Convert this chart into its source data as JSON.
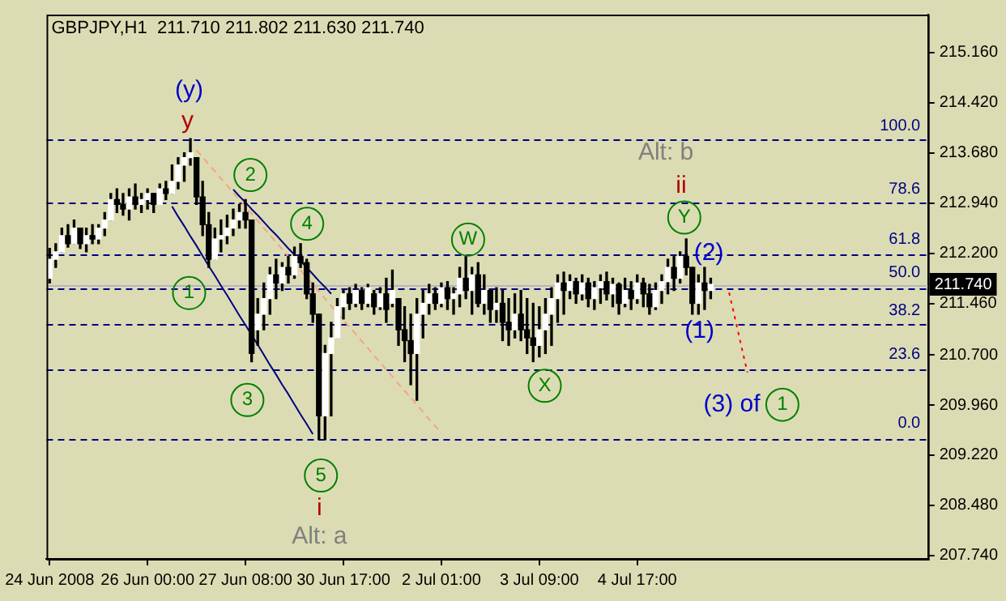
{
  "chart_data": {
    "type": "candlestick",
    "title": "GBPJPY,H1  211.710 211.802 211.630 211.740",
    "color": "#000000",
    "colors": [
      "#ffffff",
      "#ffffff",
      "#ffffff",
      "#000000",
      "#ffffff",
      "#000000",
      "#ffffff",
      "#000000",
      "#ffffff",
      "#ffffff",
      "#ffffff",
      "#000000",
      "#000000",
      "#ffffff",
      "#000000",
      "#ffffff",
      "#ffffff",
      "#000000",
      "#ffffff",
      "#000000",
      "#ffffff",
      "#ffffff",
      "#ffffff",
      "#ffffff",
      "#000000",
      "#000000",
      "#000000",
      "#ffffff",
      "#ffffff",
      "#ffffff",
      "#ffffff",
      "#ffffff",
      "#000000",
      "#000000",
      "#ffffff",
      "#ffffff",
      "#ffffff",
      "#000000",
      "#ffffff",
      "#000000",
      "#ffffff",
      "#000000",
      "#000000",
      "#000000",
      "#000000",
      "#ffffff",
      "#ffffff",
      "#ffffff",
      "#ffffff",
      "#000000",
      "#ffffff",
      "#000000",
      "#ffffff",
      "#000000",
      "#ffffff",
      "#000000",
      "#ffffff",
      "#000000",
      "#000000",
      "#000000",
      "#ffffff",
      "#ffffff",
      "#ffffff",
      "#000000",
      "#ffffff",
      "#000000",
      "#ffffff",
      "#ffffff",
      "#000000",
      "#ffffff",
      "#000000",
      "#ffffff",
      "#000000",
      "#ffffff",
      "#000000",
      "#000000",
      "#ffffff",
      "#000000",
      "#000000",
      "#000000",
      "#ffffff",
      "#ffffff",
      "#ffffff",
      "#ffffff",
      "#000000",
      "#ffffff",
      "#000000",
      "#ffffff",
      "#000000",
      "#ffffff",
      "#ffffff",
      "#000000",
      "#ffffff",
      "#000000",
      "#ffffff",
      "#000000",
      "#ffffff",
      "#000000",
      "#000000",
      "#ffffff",
      "#ffffff",
      "#ffffff",
      "#000000",
      "#ffffff",
      "#000000",
      "#000000",
      "#ffffff",
      "#000000",
      "#ffffff",
      null,
      null,
      null,
      null,
      null,
      null,
      null,
      null,
      null,
      null,
      null,
      null,
      null,
      null,
      null,
      null,
      null,
      null,
      null,
      null,
      null,
      null,
      null,
      null,
      null,
      null,
      null,
      null,
      null,
      null,
      null,
      null,
      null,
      null,
      null
    ],
    "grid": false,
    "legend": false,
    "categories": [
      "24 Jun 2008",
      null,
      null,
      null,
      null,
      null,
      null,
      null,
      null,
      null,
      null,
      null,
      null,
      null,
      null,
      null,
      "26 Jun 00:00",
      null,
      null,
      null,
      null,
      null,
      null,
      null,
      null,
      null,
      null,
      null,
      null,
      null,
      null,
      null,
      "27 Jun 08:00",
      null,
      null,
      null,
      null,
      null,
      null,
      null,
      null,
      null,
      null,
      null,
      null,
      null,
      null,
      null,
      "30 Jun 17:00",
      null,
      null,
      null,
      null,
      null,
      null,
      null,
      null,
      null,
      null,
      null,
      null,
      null,
      null,
      null,
      "2 Jul 01:00",
      null,
      null,
      null,
      null,
      null,
      null,
      null,
      null,
      null,
      null,
      null,
      null,
      null,
      null,
      null,
      "3 Jul 09:00",
      null,
      null,
      null,
      null,
      null,
      null,
      null,
      null,
      null,
      null,
      null,
      null,
      null,
      null,
      null,
      "4 Jul 17:00",
      null,
      null,
      null,
      null,
      null,
      null,
      null,
      null,
      null,
      null,
      null,
      null,
      null,
      null,
      null,
      null,
      null,
      null,
      null,
      null,
      null,
      null,
      null,
      null,
      null,
      null,
      null,
      null,
      null,
      null,
      null,
      null,
      null,
      null,
      null,
      null,
      null,
      null,
      null,
      null,
      null,
      null,
      null,
      null,
      null,
      null,
      null
    ],
    "ohlc": [
      [
        211.83,
        212.27,
        211.76,
        212.11
      ],
      [
        212.11,
        212.34,
        211.99,
        212.22
      ],
      [
        212.22,
        212.57,
        212.22,
        212.46
      ],
      [
        212.46,
        212.62,
        212.29,
        212.34
      ],
      [
        212.34,
        212.69,
        212.34,
        212.57
      ],
      [
        212.57,
        212.57,
        212.27,
        212.34
      ],
      [
        212.34,
        212.57,
        212.22,
        212.46
      ],
      [
        212.46,
        212.62,
        212.34,
        212.41
      ],
      [
        212.41,
        212.62,
        212.34,
        212.57
      ],
      [
        212.57,
        212.8,
        212.46,
        212.69
      ],
      [
        212.69,
        213.08,
        212.69,
        212.99
      ],
      [
        212.99,
        213.15,
        212.8,
        212.92
      ],
      [
        212.92,
        213.08,
        212.76,
        212.85
      ],
      [
        212.85,
        213.15,
        212.69,
        213.03
      ],
      [
        213.03,
        213.22,
        212.85,
        212.92
      ],
      [
        212.92,
        213.08,
        212.8,
        212.99
      ],
      [
        212.99,
        213.15,
        212.85,
        213.08
      ],
      [
        213.08,
        213.08,
        212.8,
        212.92
      ],
      [
        212.92,
        213.22,
        212.92,
        213.15
      ],
      [
        213.15,
        213.26,
        212.99,
        213.08
      ],
      [
        213.08,
        213.5,
        213.08,
        213.26
      ],
      [
        213.26,
        213.61,
        213.15,
        213.5
      ],
      [
        213.5,
        213.68,
        213.26,
        213.61
      ],
      [
        213.61,
        213.89,
        213.5,
        213.68
      ],
      [
        213.61,
        213.61,
        212.92,
        213.03
      ],
      [
        213.03,
        213.26,
        212.46,
        212.62
      ],
      [
        212.62,
        212.8,
        211.99,
        212.11
      ],
      [
        212.11,
        212.57,
        212.11,
        212.41
      ],
      [
        212.41,
        212.69,
        212.22,
        212.46
      ],
      [
        212.46,
        212.76,
        212.34,
        212.57
      ],
      [
        212.57,
        212.85,
        212.46,
        212.69
      ],
      [
        212.69,
        212.92,
        212.57,
        212.8
      ],
      [
        212.8,
        212.99,
        212.57,
        212.69
      ],
      [
        212.69,
        212.69,
        210.6,
        210.72
      ],
      [
        211.07,
        211.53,
        210.84,
        211.3
      ],
      [
        211.3,
        211.76,
        211.07,
        211.53
      ],
      [
        211.53,
        211.99,
        211.3,
        211.88
      ],
      [
        211.88,
        212.11,
        211.53,
        211.76
      ],
      [
        211.76,
        212.06,
        211.65,
        211.99
      ],
      [
        211.99,
        212.15,
        211.76,
        211.88
      ],
      [
        211.88,
        212.29,
        211.83,
        212.15
      ],
      [
        212.15,
        212.34,
        211.99,
        212.06
      ],
      [
        212.06,
        212.11,
        211.53,
        211.6
      ],
      [
        211.6,
        211.76,
        211.18,
        211.3
      ],
      [
        211.3,
        211.3,
        209.45,
        209.8
      ],
      [
        209.8,
        210.84,
        209.45,
        210.72
      ],
      [
        210.72,
        211.18,
        209.8,
        210.95
      ],
      [
        210.95,
        211.53,
        210.95,
        211.41
      ],
      [
        211.41,
        211.65,
        211.23,
        211.6
      ],
      [
        211.6,
        211.69,
        211.37,
        211.46
      ],
      [
        211.46,
        211.74,
        211.41,
        211.65
      ],
      [
        211.65,
        211.69,
        211.37,
        211.46
      ],
      [
        211.46,
        211.74,
        211.41,
        211.69
      ],
      [
        211.6,
        211.65,
        211.3,
        211.41
      ],
      [
        211.41,
        211.69,
        211.37,
        211.6
      ],
      [
        211.6,
        211.83,
        211.18,
        211.37
      ],
      [
        211.46,
        211.95,
        211.41,
        211.65
      ],
      [
        211.53,
        211.53,
        210.84,
        211.07
      ],
      [
        211.07,
        211.41,
        210.6,
        210.91
      ],
      [
        210.91,
        211.3,
        210.26,
        210.72
      ],
      [
        210.72,
        211.53,
        210.03,
        211.3
      ],
      [
        211.3,
        211.65,
        210.95,
        211.46
      ],
      [
        211.46,
        211.74,
        211.3,
        211.6
      ],
      [
        211.6,
        211.69,
        211.37,
        211.46
      ],
      [
        211.46,
        211.76,
        211.41,
        211.69
      ],
      [
        211.69,
        211.78,
        211.37,
        211.53
      ],
      [
        211.53,
        211.69,
        211.3,
        211.6
      ],
      [
        211.6,
        211.99,
        211.41,
        211.83
      ],
      [
        211.83,
        212.15,
        211.53,
        211.65
      ],
      [
        211.65,
        211.99,
        211.3,
        211.88
      ],
      [
        211.88,
        212.06,
        211.41,
        211.46
      ],
      [
        211.46,
        211.88,
        211.3,
        211.65
      ],
      [
        211.65,
        211.65,
        211.18,
        211.37
      ],
      [
        211.37,
        211.69,
        211.18,
        211.46
      ],
      [
        211.46,
        211.65,
        210.91,
        211.18
      ],
      [
        211.18,
        211.53,
        210.84,
        211.07
      ],
      [
        211.07,
        211.6,
        210.95,
        211.3
      ],
      [
        211.3,
        211.65,
        210.91,
        211.07
      ],
      [
        211.07,
        211.53,
        210.72,
        210.95
      ],
      [
        210.95,
        211.46,
        210.6,
        210.84
      ],
      [
        210.84,
        211.41,
        210.67,
        211.07
      ],
      [
        211.07,
        211.53,
        210.72,
        211.3
      ],
      [
        211.3,
        211.69,
        210.84,
        211.53
      ],
      [
        211.53,
        211.88,
        211.18,
        211.76
      ],
      [
        211.76,
        211.92,
        211.3,
        211.65
      ],
      [
        211.65,
        211.88,
        211.53,
        211.78
      ],
      [
        211.78,
        211.83,
        211.46,
        211.6
      ],
      [
        211.6,
        211.88,
        211.51,
        211.76
      ],
      [
        211.76,
        211.83,
        211.41,
        211.53
      ],
      [
        211.53,
        211.78,
        211.37,
        211.69
      ],
      [
        211.69,
        211.88,
        211.46,
        211.78
      ],
      [
        211.78,
        211.92,
        211.51,
        211.6
      ],
      [
        211.6,
        211.83,
        211.41,
        211.74
      ],
      [
        211.74,
        211.76,
        211.3,
        211.46
      ],
      [
        211.46,
        211.83,
        211.41,
        211.65
      ],
      [
        211.65,
        211.78,
        211.37,
        211.53
      ],
      [
        211.53,
        211.88,
        211.46,
        211.76
      ],
      [
        211.76,
        211.83,
        211.41,
        211.6
      ],
      [
        211.6,
        211.74,
        211.3,
        211.41
      ],
      [
        211.41,
        211.76,
        211.37,
        211.65
      ],
      [
        211.65,
        211.88,
        211.46,
        211.78
      ],
      [
        211.78,
        212.11,
        211.6,
        211.99
      ],
      [
        211.99,
        212.15,
        211.65,
        211.83
      ],
      [
        211.83,
        212.22,
        211.76,
        212.15
      ],
      [
        212.15,
        212.41,
        211.88,
        211.99
      ],
      [
        211.99,
        211.99,
        211.3,
        211.46
      ],
      [
        211.46,
        211.88,
        211.3,
        211.76
      ],
      [
        211.76,
        211.99,
        211.37,
        211.65
      ],
      [
        211.65,
        211.83,
        211.53,
        211.74
      ],
      null,
      null,
      null,
      null,
      null,
      null,
      null,
      null,
      null,
      null,
      null,
      null,
      null,
      null,
      null,
      null,
      null,
      null,
      null,
      null,
      null,
      null,
      null,
      null,
      null,
      null,
      null,
      null,
      null,
      null,
      null,
      null,
      null,
      null,
      null
    ],
    "ylim": [
      207.69,
      215.72
    ],
    "yticks": [
      {
        "value": 215.16,
        "label": "215.160"
      },
      {
        "value": 214.42,
        "label": "214.420"
      },
      {
        "value": 213.68,
        "label": "213.680"
      },
      {
        "value": 212.94,
        "label": "212.940"
      },
      {
        "value": 212.2,
        "label": "212.200"
      },
      {
        "value": 211.46,
        "label": "211.460"
      },
      {
        "value": 210.7,
        "label": "210.700"
      },
      {
        "value": 209.96,
        "label": "209.960"
      },
      {
        "value": 209.22,
        "label": "209.220"
      },
      {
        "value": 208.48,
        "label": "208.480"
      },
      {
        "value": 207.74,
        "label": "207.740"
      }
    ],
    "series": [
      {
        "type": "line",
        "color": "#000080",
        "line_style": "solid",
        "values": [
          null,
          null,
          null,
          null,
          null,
          null,
          null,
          null,
          null,
          null,
          null,
          null,
          null,
          null,
          null,
          null,
          null,
          null,
          null,
          null,
          212.89,
          212.74,
          212.6,
          212.45,
          212.31,
          212.16,
          212.01,
          211.87,
          211.72,
          211.58,
          211.43,
          211.28,
          211.14,
          210.99,
          210.85,
          210.7,
          210.55,
          210.41,
          210.26,
          210.12,
          209.97,
          209.82,
          209.68,
          209.53,
          null,
          null,
          null,
          null,
          null,
          null,
          null,
          null,
          null,
          null,
          null,
          null,
          null,
          null,
          null,
          null,
          null,
          null,
          null,
          null,
          null,
          null,
          null,
          null,
          null,
          null,
          null,
          null,
          null,
          null,
          null,
          null,
          null,
          null,
          null,
          null,
          null,
          null,
          null,
          null,
          null,
          null,
          null,
          null,
          null,
          null,
          null,
          null,
          null,
          null,
          null,
          null,
          null,
          null,
          null,
          null,
          null,
          null,
          null,
          null,
          null,
          null,
          null,
          null,
          null,
          null,
          null,
          null,
          null,
          null,
          null,
          null,
          null,
          null,
          null,
          null,
          null,
          null,
          null,
          null,
          null,
          null,
          null,
          null,
          null,
          null,
          null,
          null,
          null,
          null,
          null,
          null,
          null,
          null,
          null,
          null,
          null,
          null,
          null,
          null
        ]
      },
      {
        "type": "line",
        "color": "#000080",
        "line_style": "solid",
        "values": [
          null,
          null,
          null,
          null,
          null,
          null,
          null,
          null,
          null,
          null,
          null,
          null,
          null,
          null,
          null,
          null,
          null,
          null,
          null,
          null,
          null,
          null,
          null,
          null,
          null,
          null,
          null,
          null,
          null,
          null,
          213.14,
          213.04,
          212.95,
          212.85,
          212.76,
          212.66,
          212.56,
          212.47,
          212.37,
          212.27,
          212.18,
          212.08,
          211.99,
          211.89,
          211.79,
          211.7,
          211.6,
          null,
          null,
          null,
          null,
          null,
          null,
          null,
          null,
          null,
          null,
          null,
          null,
          null,
          null,
          null,
          null,
          null,
          null,
          null,
          null,
          null,
          null,
          null,
          null,
          null,
          null,
          null,
          null,
          null,
          null,
          null,
          null,
          null,
          null,
          null,
          null,
          null,
          null,
          null,
          null,
          null,
          null,
          null,
          null,
          null,
          null,
          null,
          null,
          null,
          null,
          null,
          null,
          null,
          null,
          null,
          null,
          null,
          null,
          null,
          null,
          null,
          null,
          null,
          null,
          null,
          null,
          null,
          null,
          null,
          null,
          null,
          null,
          null,
          null,
          null,
          null,
          null,
          null,
          null,
          null,
          null,
          null,
          null,
          null,
          null,
          null,
          null,
          null,
          null,
          null,
          null,
          null,
          null,
          null,
          null,
          null,
          null
        ]
      },
      {
        "type": "line",
        "color": "#f4a582",
        "line_style": "dashed",
        "values": [
          null,
          null,
          null,
          null,
          null,
          null,
          null,
          null,
          null,
          null,
          null,
          null,
          null,
          null,
          null,
          null,
          null,
          null,
          null,
          null,
          null,
          null,
          null,
          null,
          213.72,
          213.62,
          213.51,
          213.41,
          213.3,
          213.2,
          213.09,
          212.99,
          212.89,
          212.78,
          212.68,
          212.57,
          212.47,
          212.36,
          212.26,
          212.15,
          212.05,
          211.95,
          211.84,
          211.74,
          211.63,
          211.53,
          211.42,
          211.32,
          211.21,
          211.11,
          211.01,
          210.9,
          210.8,
          210.69,
          210.59,
          210.48,
          210.38,
          210.27,
          210.17,
          210.07,
          209.96,
          209.86,
          209.75,
          209.65,
          209.54,
          null,
          null,
          null,
          null,
          null,
          null,
          null,
          null,
          null,
          null,
          null,
          null,
          null,
          null,
          null,
          null,
          null,
          null,
          null,
          null,
          null,
          null,
          null,
          null,
          null,
          null,
          null,
          null,
          null,
          null,
          null,
          null,
          null,
          null,
          null,
          null,
          null,
          null,
          null,
          null,
          null,
          null,
          null,
          null,
          null,
          null,
          null,
          null,
          null,
          null,
          null,
          null,
          null,
          null,
          null,
          null,
          null,
          null,
          null,
          null,
          null,
          null,
          null,
          null,
          null,
          null,
          null,
          null,
          null,
          null,
          null,
          null,
          null,
          null,
          null,
          null,
          null,
          null,
          null
        ]
      },
      {
        "type": "line",
        "color": "#ff0000",
        "line_style": "dotted",
        "values": [
          null,
          null,
          null,
          null,
          null,
          null,
          null,
          null,
          null,
          null,
          null,
          null,
          null,
          null,
          null,
          null,
          null,
          null,
          null,
          null,
          null,
          null,
          null,
          null,
          null,
          null,
          null,
          null,
          null,
          null,
          null,
          null,
          null,
          null,
          null,
          null,
          null,
          null,
          null,
          null,
          null,
          null,
          null,
          null,
          null,
          null,
          null,
          null,
          null,
          null,
          null,
          null,
          null,
          null,
          null,
          null,
          null,
          null,
          null,
          null,
          null,
          null,
          null,
          null,
          null,
          null,
          null,
          null,
          null,
          null,
          null,
          null,
          null,
          null,
          null,
          null,
          null,
          null,
          null,
          null,
          null,
          null,
          null,
          null,
          null,
          null,
          null,
          null,
          null,
          null,
          null,
          null,
          null,
          null,
          null,
          null,
          null,
          null,
          null,
          null,
          null,
          null,
          null,
          null,
          null,
          null,
          null,
          null,
          null,
          null,
          null,
          211.62,
          211.23,
          210.83,
          210.44,
          null,
          null,
          null,
          null,
          null,
          null,
          null,
          null,
          null,
          null,
          null,
          null,
          null,
          null,
          null,
          null,
          null,
          null,
          null,
          null,
          null,
          null,
          null,
          null,
          null,
          null,
          null,
          null,
          null
        ]
      }
    ],
    "marker": "none",
    "ref_lines": [
      {
        "axis": "y",
        "value": 213.89,
        "color": "#000080",
        "line_style": "dashed"
      },
      {
        "axis": "y",
        "value": 212.94,
        "color": "#000080",
        "line_style": "dashed"
      },
      {
        "axis": "y",
        "value": 212.19,
        "color": "#000080",
        "line_style": "dashed"
      },
      {
        "axis": "y",
        "value": 211.67,
        "color": "#000080",
        "line_style": "dashed"
      },
      {
        "axis": "y",
        "value": 211.15,
        "color": "#000080",
        "line_style": "dashed"
      },
      {
        "axis": "y",
        "value": 210.49,
        "color": "#000080",
        "line_style": "dashed"
      },
      {
        "axis": "y",
        "value": 209.45,
        "color": "#000080",
        "line_style": "dashed"
      },
      {
        "axis": "y",
        "value": 211.74,
        "label": "211.740",
        "color": "#b4b4c8",
        "line_style": "solid"
      }
    ],
    "annotations": [
      "(y)",
      "y",
      "Alt: b",
      "ii",
      "Y",
      "(2)",
      "(1)",
      "(3) of",
      "1",
      "2",
      "4",
      "W",
      "1",
      "3",
      "5",
      "X",
      "i",
      "Alt: a",
      "100.0",
      "78.6",
      "61.8",
      "50.0",
      "38.2",
      "23.6",
      "0.0"
    ]
  }
}
